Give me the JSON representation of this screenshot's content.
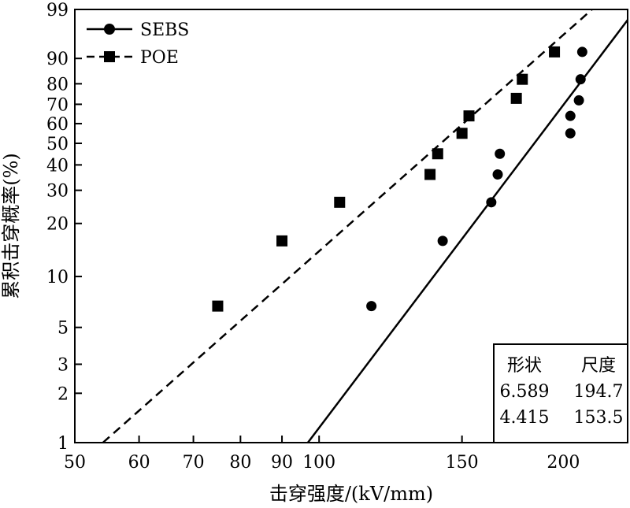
{
  "chart_data": {
    "type": "scatter",
    "title": "",
    "xlabel": "击穿强度/(kV/mm)",
    "ylabel": "累积击穿概率(%)",
    "x_scale": "log",
    "y_scale": "weibull",
    "xlim": [
      50,
      240
    ],
    "ylim": [
      1,
      99
    ],
    "x_ticks": [
      50,
      60,
      70,
      80,
      90,
      100,
      150,
      200
    ],
    "x_tick_labels": [
      "50",
      "60",
      "70",
      "80",
      "90",
      "100",
      "150",
      "200"
    ],
    "y_ticks": [
      1,
      2,
      3,
      5,
      10,
      20,
      30,
      40,
      50,
      60,
      70,
      80,
      90,
      99
    ],
    "y_tick_labels": [
      "1",
      "2",
      "3",
      "5",
      "10",
      "20",
      "30",
      "40",
      "50",
      "60",
      "70",
      "80",
      "90",
      "99"
    ],
    "legend_position": "top-left",
    "series": [
      {
        "name": "SEBS",
        "marker": "circle",
        "line_style": "solid",
        "color": "#000000",
        "shape": 6.589,
        "scale": 194.7,
        "points": [
          {
            "x": 116,
            "y": 6.7
          },
          {
            "x": 142,
            "y": 16
          },
          {
            "x": 163,
            "y": 26
          },
          {
            "x": 166,
            "y": 36
          },
          {
            "x": 167,
            "y": 45
          },
          {
            "x": 204,
            "y": 55
          },
          {
            "x": 204,
            "y": 64
          },
          {
            "x": 209,
            "y": 72
          },
          {
            "x": 210,
            "y": 82
          },
          {
            "x": 211,
            "y": 92
          }
        ]
      },
      {
        "name": "POE",
        "marker": "square",
        "line_style": "dashed",
        "color": "#000000",
        "shape": 4.415,
        "scale": 153.5,
        "points": [
          {
            "x": 75,
            "y": 6.7
          },
          {
            "x": 90,
            "y": 16
          },
          {
            "x": 106,
            "y": 26
          },
          {
            "x": 137,
            "y": 36
          },
          {
            "x": 140,
            "y": 45
          },
          {
            "x": 150,
            "y": 55
          },
          {
            "x": 153,
            "y": 64
          },
          {
            "x": 175,
            "y": 73
          },
          {
            "x": 178,
            "y": 82
          },
          {
            "x": 195,
            "y": 92
          }
        ]
      }
    ],
    "parameter_table": {
      "headers": [
        "形状",
        "尺度"
      ],
      "rows": [
        [
          "6.589",
          "194.7"
        ],
        [
          "4.415",
          "153.5"
        ]
      ]
    }
  }
}
